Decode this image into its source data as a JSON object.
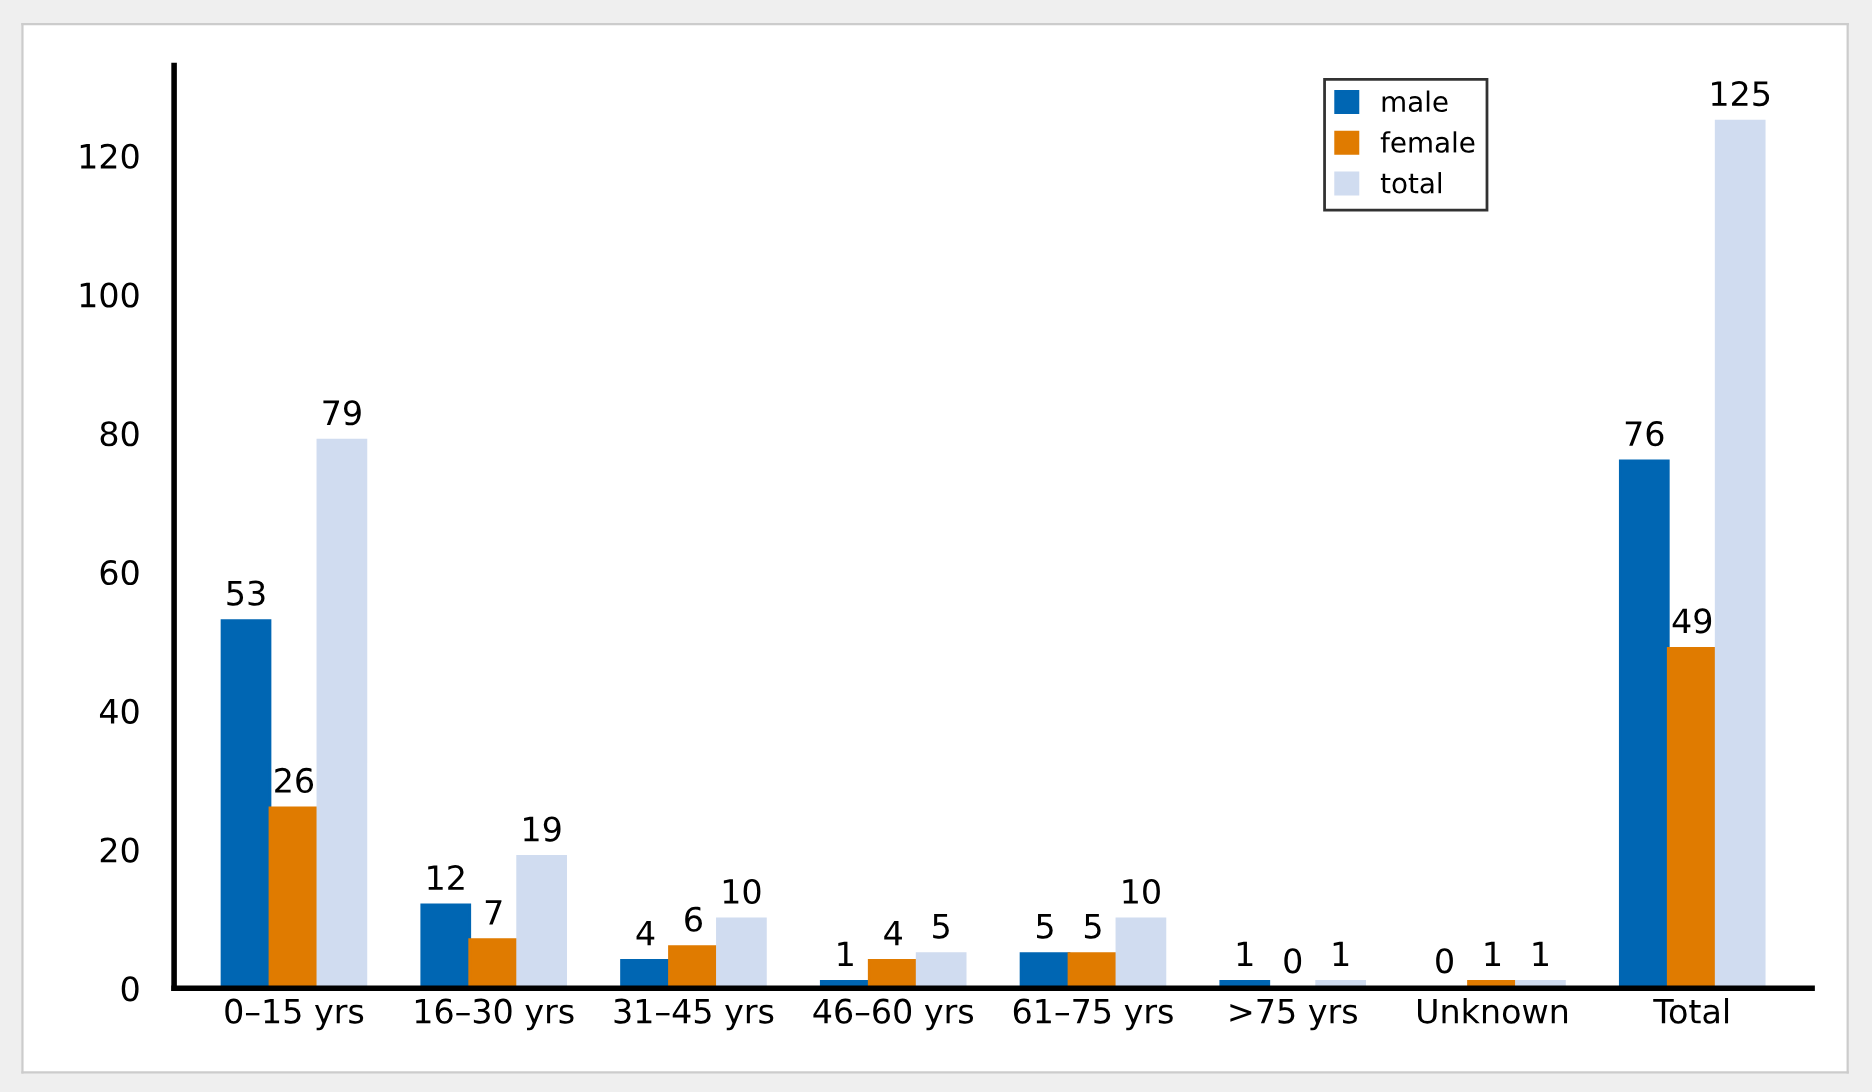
{
  "chart_data": {
    "type": "bar",
    "categories": [
      "0–15 yrs",
      "16–30 yrs",
      "31–45 yrs",
      "46–60 yrs",
      "61–75 yrs",
      ">75 yrs",
      "Unknown",
      "Total"
    ],
    "series": [
      {
        "name": "male",
        "color": "#0066b3",
        "values": [
          53,
          12,
          4,
          1,
          5,
          1,
          0,
          76
        ]
      },
      {
        "name": "female",
        "color": "#e07b00",
        "values": [
          26,
          7,
          6,
          4,
          5,
          0,
          1,
          49
        ]
      },
      {
        "name": "total",
        "color": "#d0dcf0",
        "values": [
          79,
          19,
          10,
          5,
          10,
          1,
          1,
          125
        ]
      }
    ],
    "ylim": [
      0,
      133
    ],
    "yticks": [
      0,
      20,
      40,
      60,
      80,
      100,
      120
    ],
    "data_labels": true,
    "grid": false,
    "legend": "top right"
  }
}
